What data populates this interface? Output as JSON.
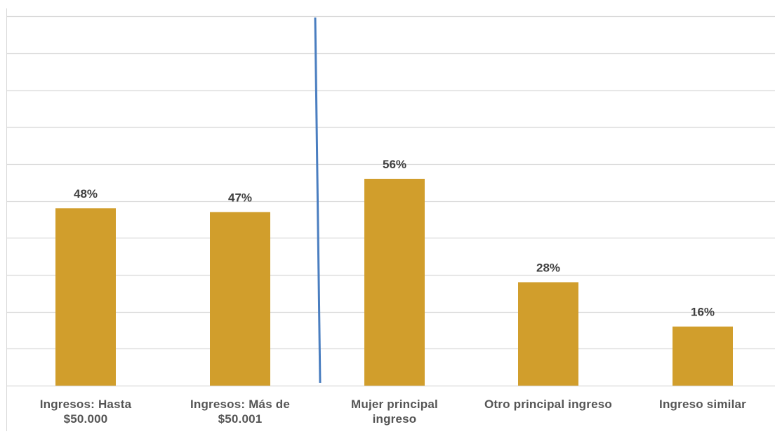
{
  "chart_data": {
    "type": "bar",
    "categories": [
      "Ingresos:  Hasta\n$50.000",
      "Ingresos:  Más de\n$50.001",
      "Mujer principal\ningreso",
      "Otro principal ingreso",
      "Ingreso similar"
    ],
    "values": [
      48,
      47,
      56,
      28,
      16
    ],
    "data_labels": [
      "48%",
      "47%",
      "56%",
      "28%",
      "16%"
    ],
    "ylim": [
      0,
      100
    ],
    "grid": true,
    "legend": "none",
    "separator_after_category": 2,
    "colors": {
      "bar": "#D19E2C",
      "gridline": "#D9D9D9",
      "separator": "#4A7EC0",
      "label_text": "#404040",
      "category_text": "#555555"
    }
  }
}
